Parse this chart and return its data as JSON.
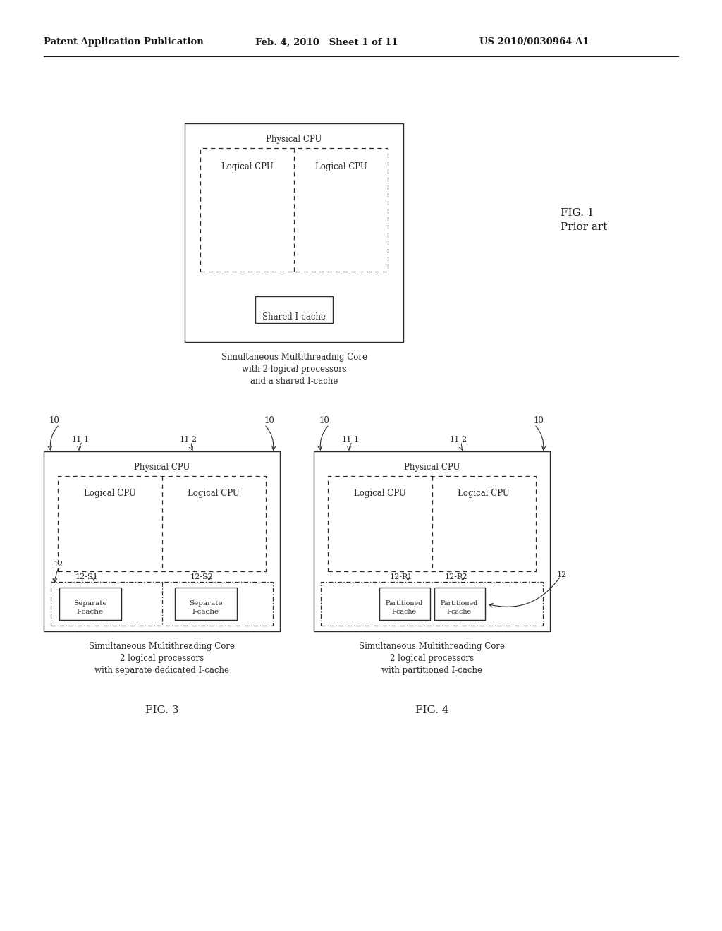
{
  "bg_color": "#ffffff",
  "header_left": "Patent Application Publication",
  "header_mid": "Feb. 4, 2010   Sheet 1 of 11",
  "header_right": "US 2010/0030964 A1",
  "fig1_label_line1": "FIG. 1",
  "fig1_label_line2": "Prior art",
  "fig3_label": "FIG. 3",
  "fig4_label": "FIG. 4",
  "fig1_caption_line1": "Simultaneous Multithreading Core",
  "fig1_caption_line2": "with 2 logical processors",
  "fig1_caption_line3": "and a shared I-cache",
  "fig3_caption_line1": "Simultaneous Multithreading Core",
  "fig3_caption_line2": "2 logical processors",
  "fig3_caption_line3": "with separate dedicated I-cache",
  "fig4_caption_line1": "Simultaneous Multithreading Core",
  "fig4_caption_line2": "2 logical processors",
  "fig4_caption_line3": "with partitioned I-cache"
}
